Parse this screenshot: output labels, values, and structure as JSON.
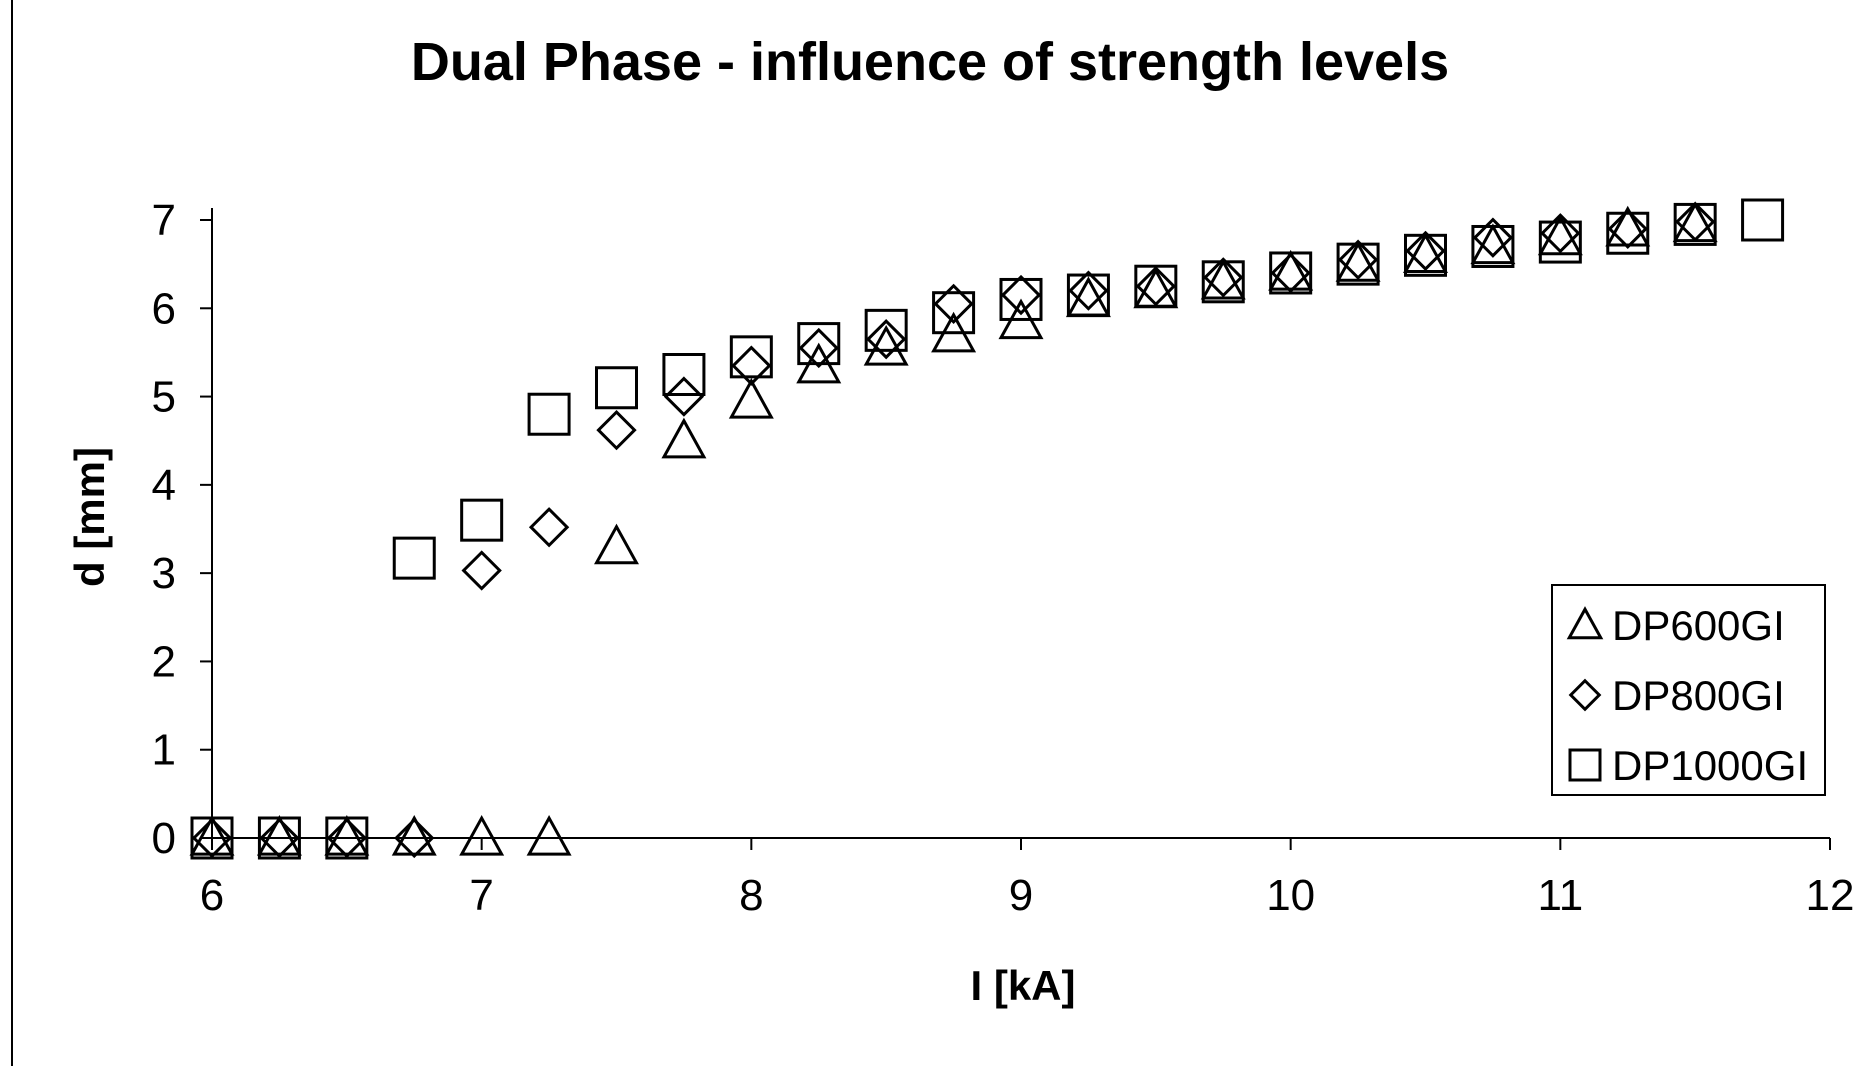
{
  "chart_data": {
    "type": "scatter",
    "title": "Dual Phase - influence of strength levels",
    "xlabel": "I [kA]",
    "ylabel": "d [mm]",
    "xlim": [
      6,
      12
    ],
    "ylim": [
      0,
      7
    ],
    "x_ticks": [
      "6",
      "7",
      "8",
      "9",
      "10",
      "11",
      "12"
    ],
    "y_ticks": [
      "0",
      "1",
      "2",
      "3",
      "4",
      "5",
      "6",
      "7"
    ],
    "grid": false,
    "legend_position": "right",
    "series": [
      {
        "name": "DP600GI",
        "marker": "triangle",
        "color": "#000000",
        "x": [
          6,
          6.25,
          6.5,
          6.75,
          7,
          7.25,
          7.5,
          7.75,
          8,
          8.25,
          8.5,
          8.75,
          9,
          9.25,
          9.5,
          9.75,
          10,
          10.25,
          10.5,
          10.75,
          11,
          11.25,
          11.5
        ],
        "y": [
          0,
          0,
          0,
          0,
          0,
          0,
          3.3,
          4.5,
          4.95,
          5.35,
          5.55,
          5.7,
          5.85,
          6.1,
          6.2,
          6.3,
          6.4,
          6.5,
          6.6,
          6.7,
          6.8,
          6.9,
          6.95
        ]
      },
      {
        "name": "DP800GI",
        "marker": "diamond",
        "color": "#000000",
        "x": [
          6,
          6.25,
          6.5,
          6.75,
          7,
          7.25,
          7.5,
          7.75,
          8,
          8.25,
          8.5,
          8.75,
          9,
          9.25,
          9.5,
          9.75,
          10,
          10.25,
          10.5,
          10.75,
          11,
          11.25,
          11.5
        ],
        "y": [
          0,
          0,
          0,
          0,
          3.03,
          3.52,
          4.62,
          5.0,
          5.35,
          5.55,
          5.65,
          6.05,
          6.15,
          6.2,
          6.25,
          6.35,
          6.4,
          6.55,
          6.65,
          6.8,
          6.85,
          6.9,
          6.98
        ]
      },
      {
        "name": "DP1000GI",
        "marker": "square",
        "color": "#000000",
        "x": [
          6,
          6.25,
          6.5,
          6.75,
          7,
          7.25,
          7.5,
          7.75,
          8,
          8.25,
          8.5,
          8.75,
          9,
          9.25,
          9.5,
          9.75,
          10,
          10.25,
          10.5,
          10.75,
          11,
          11.25,
          11.5,
          11.75
        ],
        "y": [
          0,
          0,
          0,
          3.17,
          3.6,
          4.8,
          5.1,
          5.25,
          5.45,
          5.6,
          5.75,
          5.95,
          6.1,
          6.15,
          6.25,
          6.3,
          6.4,
          6.5,
          6.6,
          6.7,
          6.75,
          6.85,
          6.95,
          7.0
        ]
      }
    ]
  }
}
